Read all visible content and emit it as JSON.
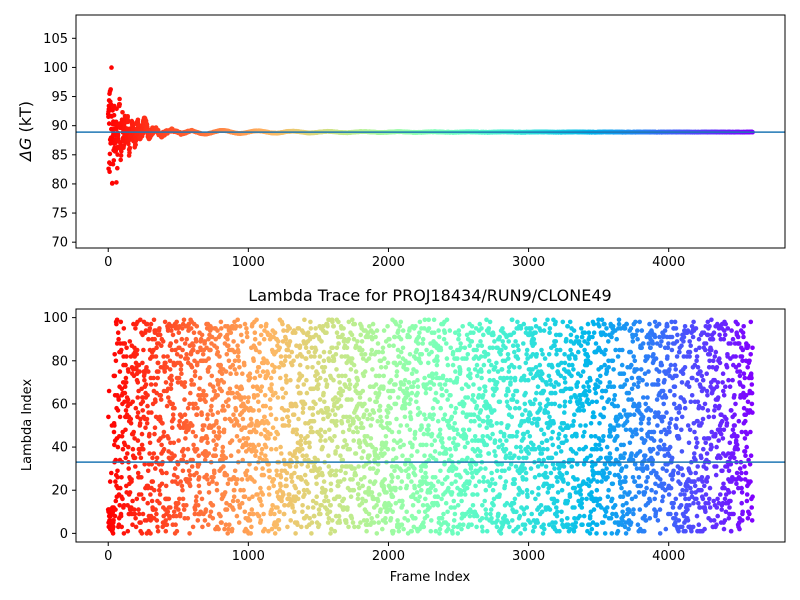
{
  "chart_data": [
    {
      "type": "scatter",
      "title": "",
      "xlabel": "",
      "ylabel": "ΔG (kT)",
      "ylabel_symbol": "ΔG",
      "ylabel_unit": " (kT)",
      "xlim": [
        -230,
        4830
      ],
      "ylim": [
        69,
        109
      ],
      "xticks": [
        0,
        1000,
        2000,
        3000,
        4000
      ],
      "yticks": [
        70,
        75,
        80,
        85,
        90,
        95,
        100,
        105
      ],
      "colormap": "rainbow (red → purple by frame index)",
      "reference_line": {
        "y": 88.9,
        "color": "#1f77b4"
      },
      "series": [
        {
          "description": "running free-energy estimate vs frame; large scatter (80–100) in first ~60 frames, converges to ~88.9 by frame ~600",
          "frame_count": 4600,
          "points_early": [
            [
              5,
              100.1
            ],
            [
              12,
              80.1
            ],
            [
              20,
              100.0
            ],
            [
              25,
              96.2
            ],
            [
              30,
              80.3
            ],
            [
              35,
              95.5
            ],
            [
              40,
              83.0
            ],
            [
              45,
              90.0
            ],
            [
              50,
              94.0
            ],
            [
              55,
              86.5
            ],
            [
              60,
              91.8
            ],
            [
              65,
              85.0
            ],
            [
              70,
              89.5
            ],
            [
              75,
              87.2
            ],
            [
              80,
              93.5
            ],
            [
              90,
              86.0
            ],
            [
              100,
              91.0
            ],
            [
              110,
              87.0
            ],
            [
              120,
              90.8
            ],
            [
              130,
              87.5
            ],
            [
              140,
              90.2
            ],
            [
              150,
              86.2
            ],
            [
              170,
              89.8
            ],
            [
              190,
              87.0
            ],
            [
              210,
              90.5
            ],
            [
              230,
              88.0
            ],
            [
              260,
              90.8
            ],
            [
              290,
              88.3
            ],
            [
              330,
              89.6
            ],
            [
              380,
              88.4
            ],
            [
              450,
              89.3
            ],
            [
              520,
              88.6
            ],
            [
              600,
              89.2
            ],
            [
              700,
              88.8
            ],
            [
              800,
              89.1
            ],
            [
              1000,
              89.2
            ],
            [
              1200,
              89.0
            ],
            [
              1500,
              89.0
            ],
            [
              2000,
              88.9
            ],
            [
              2500,
              88.9
            ],
            [
              3000,
              88.9
            ],
            [
              3500,
              88.9
            ],
            [
              4000,
              88.9
            ],
            [
              4600,
              88.9
            ]
          ]
        }
      ]
    },
    {
      "type": "scatter",
      "title": "Lambda Trace for PROJ18434/RUN9/CLONE49",
      "xlabel": "Frame Index",
      "ylabel": "Lambda Index",
      "xlim": [
        -230,
        4830
      ],
      "ylim": [
        -4,
        104
      ],
      "xticks": [
        0,
        1000,
        2000,
        3000,
        4000
      ],
      "yticks": [
        0,
        20,
        40,
        60,
        80,
        100
      ],
      "colormap": "rainbow (red → purple by frame index)",
      "reference_line": {
        "y": 33,
        "color": "#1f77b4"
      },
      "series": [
        {
          "description": "lambda index (0–99) visited at each frame; random walk uniformly covering 0–99 across frames 0–4600",
          "frame_count": 4600,
          "lambda_range": [
            0,
            99
          ]
        }
      ]
    }
  ]
}
